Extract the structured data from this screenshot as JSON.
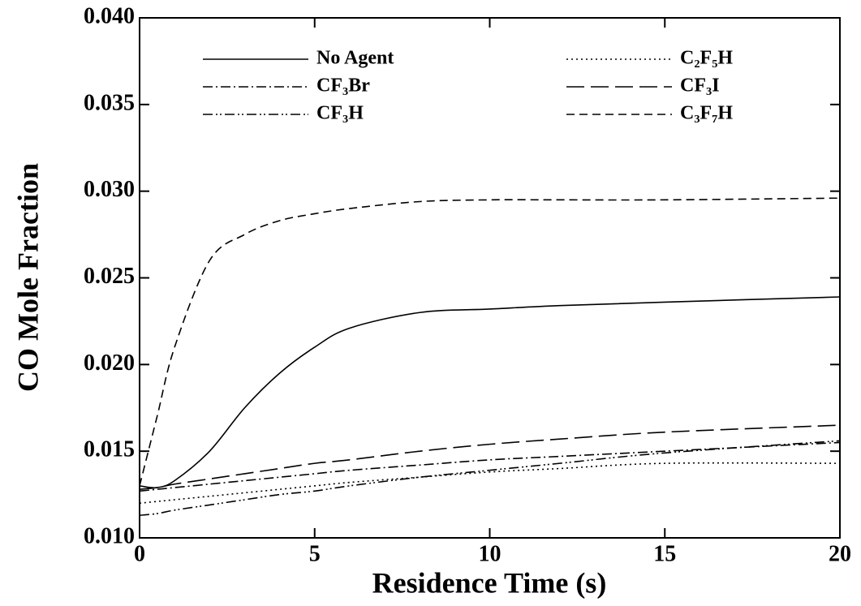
{
  "chart_data": {
    "type": "line",
    "xlabel": "Residence Time (s)",
    "ylabel": "CO Mole Fraction",
    "x": [
      0,
      0.5,
      1,
      2,
      3,
      4,
      5,
      6,
      8,
      10,
      12,
      15,
      20
    ],
    "series": [
      {
        "name": "No Agent",
        "color": "#000000",
        "dash": "solid",
        "values": [
          0.013,
          0.0129,
          0.0133,
          0.015,
          0.0175,
          0.0195,
          0.021,
          0.0221,
          0.023,
          0.0232,
          0.0234,
          0.0236,
          0.0239
        ]
      },
      {
        "name": "CF₃Br",
        "color": "#000000",
        "dash": "dash-dot",
        "values": [
          0.0127,
          0.0128,
          0.0129,
          0.0131,
          0.0133,
          0.0135,
          0.0137,
          0.0139,
          0.0142,
          0.0145,
          0.0147,
          0.015,
          0.0155
        ]
      },
      {
        "name": "CF₃H",
        "color": "#000000",
        "dash": "dash-dot-dot",
        "values": [
          0.0113,
          0.0114,
          0.0116,
          0.0119,
          0.0122,
          0.0125,
          0.0127,
          0.013,
          0.0135,
          0.0139,
          0.0143,
          0.0149,
          0.0156
        ]
      },
      {
        "name": "C₂F₅H",
        "color": "#000000",
        "dash": "dotted",
        "values": [
          0.012,
          0.0121,
          0.0122,
          0.0124,
          0.0126,
          0.0128,
          0.013,
          0.0132,
          0.0135,
          0.0138,
          0.014,
          0.0143,
          0.0143
        ]
      },
      {
        "name": "CF₃I",
        "color": "#000000",
        "dash": "long-dash",
        "values": [
          0.0128,
          0.0129,
          0.0131,
          0.0134,
          0.0137,
          0.014,
          0.0143,
          0.0145,
          0.015,
          0.0154,
          0.0157,
          0.0161,
          0.0165
        ]
      },
      {
        "name": "C₃F₇H",
        "color": "#000000",
        "dash": "dashed",
        "values": [
          0.013,
          0.017,
          0.021,
          0.026,
          0.0275,
          0.0283,
          0.0287,
          0.029,
          0.0294,
          0.0295,
          0.0295,
          0.0295,
          0.0296
        ]
      }
    ],
    "xlim": [
      0,
      20
    ],
    "xticks": [
      0,
      5,
      10,
      15,
      20
    ],
    "ylim": [
      0.01,
      0.04
    ],
    "yticks": [
      {
        "value": 0.01,
        "label": "0.010"
      },
      {
        "value": 0.015,
        "label": "0.015"
      },
      {
        "value": 0.02,
        "label": "0.020"
      },
      {
        "value": 0.025,
        "label": "0.025"
      },
      {
        "value": 0.03,
        "label": "0.030"
      },
      {
        "value": 0.035,
        "label": "0.035"
      },
      {
        "value": 0.04,
        "label": "0.040"
      }
    ],
    "legend": "top"
  }
}
